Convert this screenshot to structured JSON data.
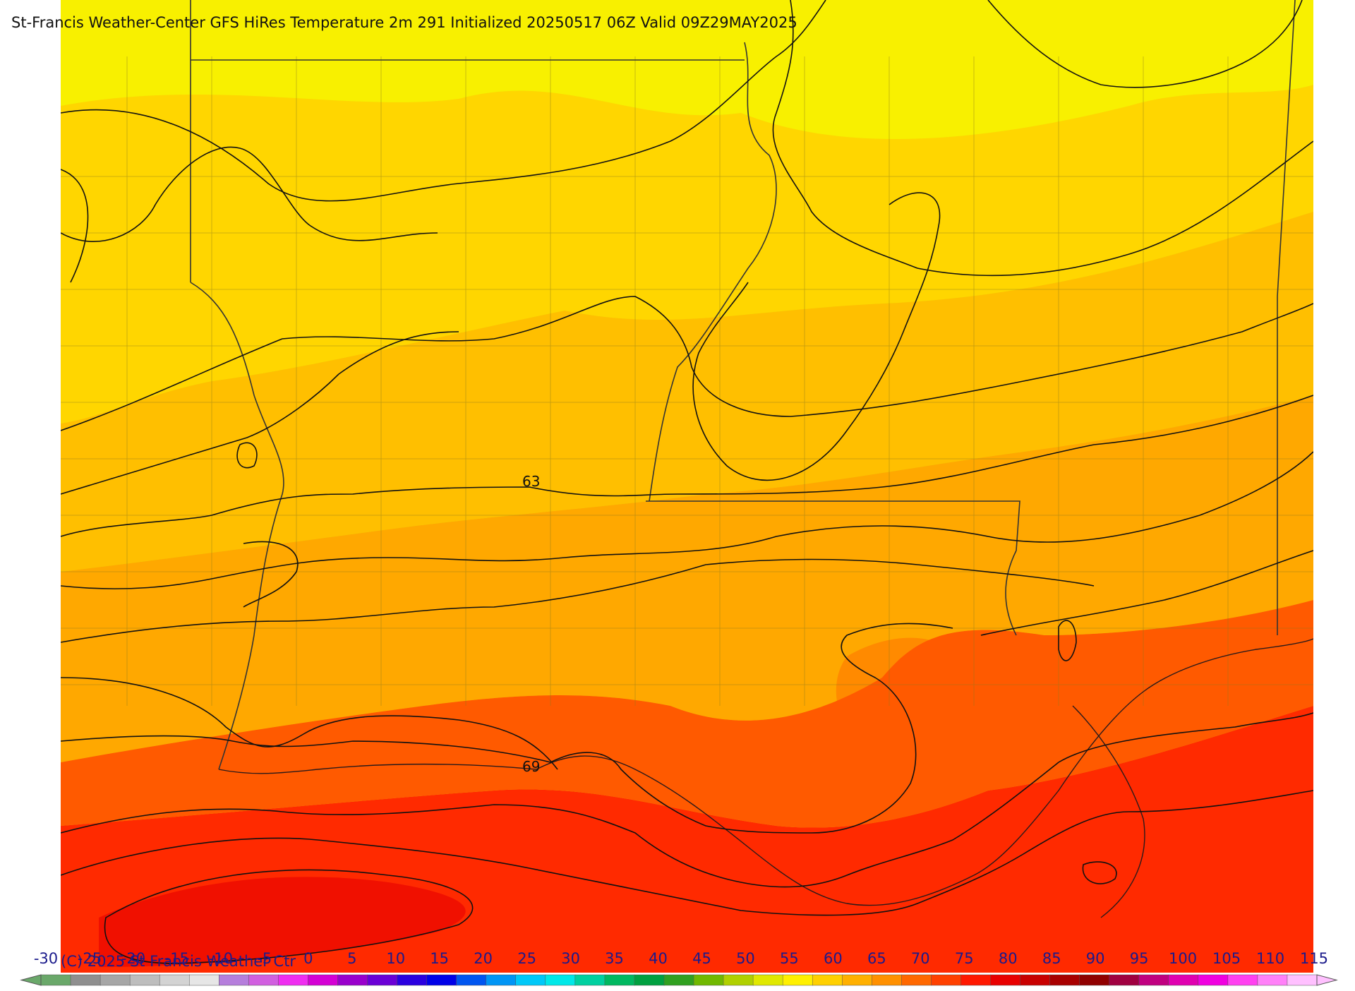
{
  "header": {
    "title": "St-Francis Weather-Center GFS HiRes Temperature 2m  291 Initialized 20250517 06Z Valid 09Z29MAY2025"
  },
  "map": {
    "contour_labels": [
      {
        "id": "label-63",
        "text": "63"
      },
      {
        "id": "label-69",
        "text": "69"
      }
    ],
    "colors": {
      "yellow_green": "#e6f500",
      "yellow": "#f8f000",
      "gold": "#ffd600",
      "amber": "#ffbf00",
      "orange_light": "#ffa800",
      "orange": "#ff8a00",
      "orange_red": "#ff5a00",
      "red": "#ff2a00",
      "deep_red": "#f01000"
    }
  },
  "colorbar": {
    "labels": [
      "-30",
      "-25",
      "-20",
      "-15",
      "-10",
      "-5",
      "0",
      "5",
      "10",
      "15",
      "20",
      "25",
      "30",
      "35",
      "40",
      "45",
      "50",
      "55",
      "60",
      "65",
      "70",
      "75",
      "80",
      "85",
      "90",
      "95",
      "100",
      "105",
      "110",
      "115"
    ],
    "colors": [
      "#6aa86a",
      "#8f8f8f",
      "#a6a6a6",
      "#bdbdbd",
      "#d3d3d3",
      "#e6e6e6",
      "#b57edc",
      "#d15fe0",
      "#ef2df0",
      "#d400d4",
      "#9900cc",
      "#6a00d6",
      "#2a00e0",
      "#0000e8",
      "#0055f0",
      "#0095f5",
      "#00c8f8",
      "#00e8e8",
      "#00d0a0",
      "#00b860",
      "#00a040",
      "#30a020",
      "#70b800",
      "#b0d000",
      "#e0e800",
      "#fff000",
      "#ffd000",
      "#ffb000",
      "#ff9000",
      "#ff6800",
      "#ff4000",
      "#ff1800",
      "#e80000",
      "#c80000",
      "#a80000",
      "#900000",
      "#a00040",
      "#c00080",
      "#e000b0",
      "#f000e0",
      "#ff40f0",
      "#ff80f8",
      "#ffc0ff"
    ]
  },
  "footer": {
    "copyright": "(C) 2025 St Francis Weather Ctr"
  }
}
